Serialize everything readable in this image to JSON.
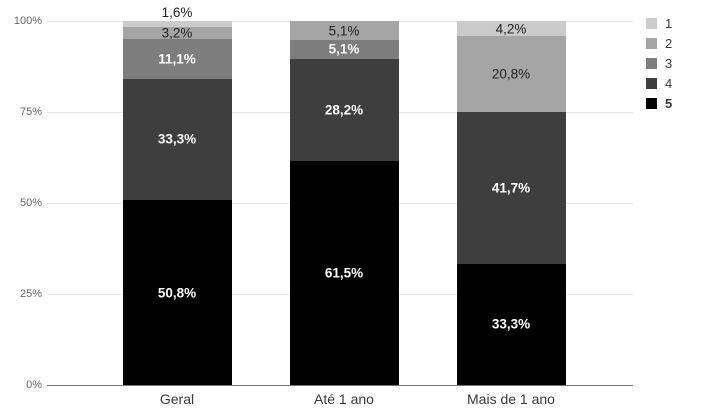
{
  "chart_data": {
    "type": "bar",
    "variant": "stacked-100-percent",
    "orientation": "vertical",
    "title": "",
    "categories": [
      "Geral",
      "Até 1 ano",
      "Mais de 1 ano"
    ],
    "series": [
      {
        "name": "1",
        "color": "#cbcbcb",
        "values": [
          1.6,
          0,
          4.2
        ],
        "data_labels": [
          "1,6%",
          null,
          "4,2%"
        ],
        "legend_bold": false
      },
      {
        "name": "2",
        "color": "#a5a5a5",
        "values": [
          3.2,
          5.1,
          20.8
        ],
        "data_labels": [
          "3,2%",
          "5,1%",
          "20,8%"
        ],
        "legend_bold": false
      },
      {
        "name": "3",
        "color": "#7d7d7d",
        "values": [
          11.1,
          5.1,
          0
        ],
        "data_labels": [
          "11,1%",
          "5,1%",
          null
        ],
        "legend_bold": false
      },
      {
        "name": "4",
        "color": "#3e3e3e",
        "values": [
          33.3,
          28.2,
          41.7
        ],
        "data_labels": [
          "33,3%",
          "28,2%",
          "41,7%"
        ],
        "legend_bold": false
      },
      {
        "name": "5",
        "color": "#000000",
        "values": [
          50.8,
          61.5,
          33.3
        ],
        "data_labels": [
          "50,8%",
          "61,5%",
          "33,3%"
        ],
        "legend_bold": true
      }
    ],
    "ylim": [
      0,
      100
    ],
    "y_tick_labels": [
      "0%",
      "25%",
      "50%",
      "75%",
      "100%"
    ],
    "y_tick_values": [
      0,
      25,
      50,
      75,
      100
    ],
    "grid": true,
    "legend_position": "right",
    "legend_entries": [
      "1",
      "2",
      "3",
      "4",
      "5"
    ],
    "background": "#ffffff"
  }
}
